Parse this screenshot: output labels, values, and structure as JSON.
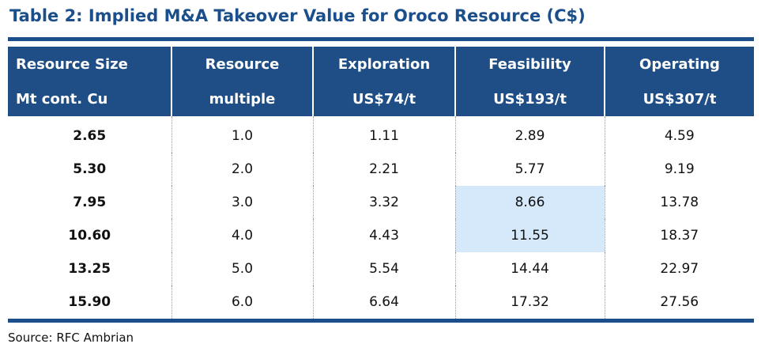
{
  "title": "Table 2: Implied M&A Takeover Value for Oroco Resource (C$)",
  "header_row1": [
    "Resource Size",
    "Resource",
    "Exploration",
    "Feasibility",
    "Operating"
  ],
  "header_row2": [
    "Mt cont. Cu",
    "multiple",
    "US$74/t",
    "US$193/t",
    "US$307/t"
  ],
  "rows": [
    [
      "2.65",
      "1.0",
      "1.11",
      "2.89",
      "4.59"
    ],
    [
      "5.30",
      "2.0",
      "2.21",
      "5.77",
      "9.19"
    ],
    [
      "7.95",
      "3.0",
      "3.32",
      "8.66",
      "13.78"
    ],
    [
      "10.60",
      "4.0",
      "4.43",
      "11.55",
      "18.37"
    ],
    [
      "13.25",
      "5.0",
      "5.54",
      "14.44",
      "22.97"
    ],
    [
      "15.90",
      "6.0",
      "6.64",
      "17.32",
      "27.56"
    ]
  ],
  "highlight_color": "#d5e9fb",
  "header_color": "#1f4e86",
  "source": "Source: RFC Ambrian"
}
